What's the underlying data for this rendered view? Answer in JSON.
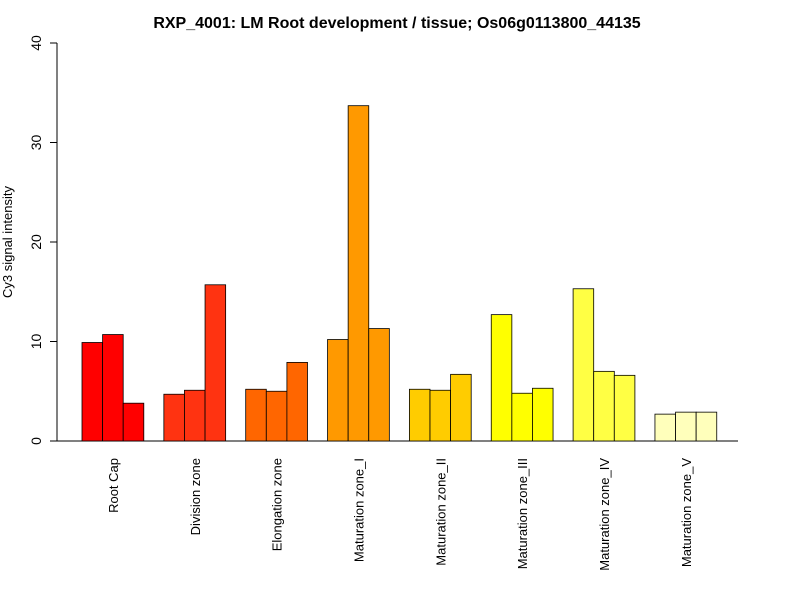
{
  "chart_data": {
    "type": "bar",
    "title": "RXP_4001: LM Root development / tissue; Os06g0113800_44135",
    "xlabel": "",
    "ylabel": "Cy3 signal intensity",
    "ylim": [
      0,
      40
    ],
    "yticks": [
      0,
      10,
      20,
      30,
      40
    ],
    "grid": false,
    "categories": [
      "Root Cap",
      "Division zone",
      "Elongation zone",
      "Maturation zone_I",
      "Maturation zone_II",
      "Maturation zone_III",
      "Maturation zone_IV",
      "Maturation zone_V"
    ],
    "colors": [
      "#ff0000",
      "#ff3311",
      "#ff6600",
      "#ff9900",
      "#ffcc00",
      "#ffff00",
      "#ffff44",
      "#ffffbb"
    ],
    "values": [
      [
        9.9,
        10.7,
        3.8
      ],
      [
        4.7,
        5.1,
        15.7
      ],
      [
        5.2,
        5.0,
        7.9
      ],
      [
        10.2,
        33.7,
        11.3
      ],
      [
        5.2,
        5.1,
        6.7
      ],
      [
        12.7,
        4.8,
        5.3
      ],
      [
        15.3,
        7.0,
        6.6
      ],
      [
        2.7,
        2.9,
        2.9
      ]
    ]
  }
}
